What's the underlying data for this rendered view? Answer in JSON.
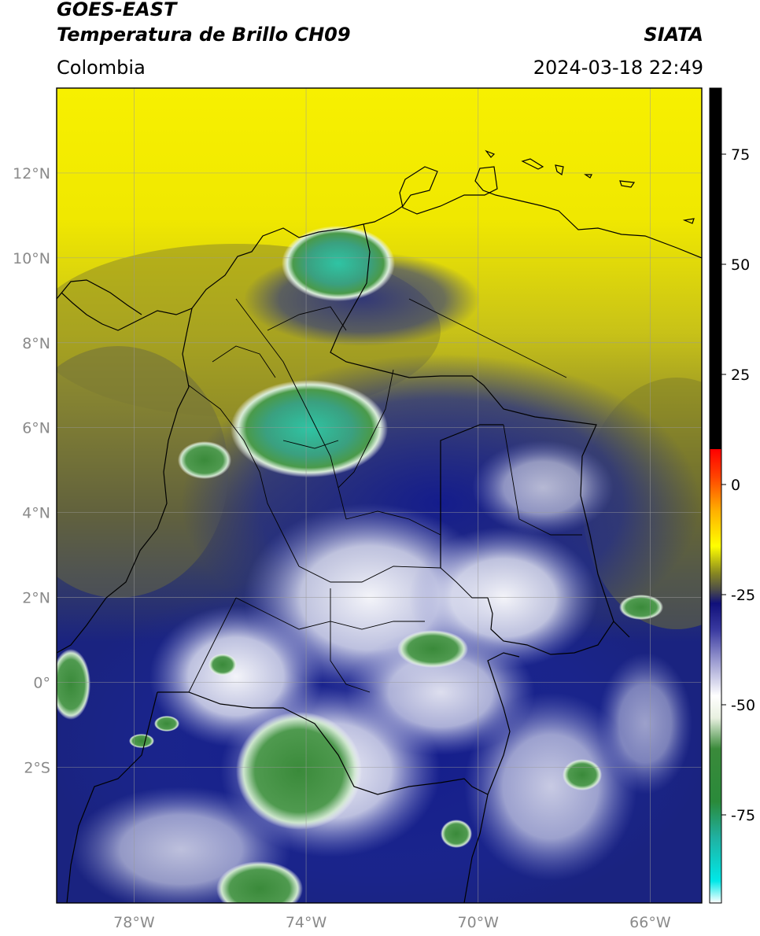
{
  "header": {
    "satellite": "GOES-EAST",
    "product": "Temperatura de Brillo CH09",
    "brand": "SIATA",
    "region": "Colombia",
    "timestamp": "2024-03-18 22:49"
  },
  "map": {
    "lon_range": [
      -79.8,
      -64.8
    ],
    "lat_range": [
      -5.2,
      14.0
    ],
    "lat_ticks": [
      {
        "value": 12,
        "label": "12°N"
      },
      {
        "value": 10,
        "label": "10°N"
      },
      {
        "value": 8,
        "label": "8°N"
      },
      {
        "value": 6,
        "label": "6°N"
      },
      {
        "value": 4,
        "label": "4°N"
      },
      {
        "value": 2,
        "label": "2°N"
      },
      {
        "value": 0,
        "label": "0°"
      },
      {
        "value": -2,
        "label": "2°S"
      }
    ],
    "lon_ticks": [
      {
        "value": -78,
        "label": "78°W"
      },
      {
        "value": -74,
        "label": "74°W"
      },
      {
        "value": -70,
        "label": "70°W"
      },
      {
        "value": -66,
        "label": "66°W"
      }
    ],
    "grid": true
  },
  "colorbar": {
    "range": [
      -95,
      90
    ],
    "ticks": [
      {
        "value": 75,
        "label": "75"
      },
      {
        "value": 50,
        "label": "50"
      },
      {
        "value": 25,
        "label": "25"
      },
      {
        "value": 0,
        "label": "0"
      },
      {
        "value": -25,
        "label": "-25"
      },
      {
        "value": -50,
        "label": "-50"
      },
      {
        "value": -75,
        "label": "-75"
      }
    ],
    "stops": [
      {
        "value": -95,
        "color": "#ffffff"
      },
      {
        "value": -90,
        "color": "#00e8e8"
      },
      {
        "value": -80,
        "color": "#20b0a0"
      },
      {
        "value": -72,
        "color": "#2a8a3a"
      },
      {
        "value": -60,
        "color": "#3a8a3a"
      },
      {
        "value": -53,
        "color": "#e8f0e0"
      },
      {
        "value": -48,
        "color": "#ffffff"
      },
      {
        "value": -40,
        "color": "#9a9ad0"
      },
      {
        "value": -33,
        "color": "#3a3aa0"
      },
      {
        "value": -27,
        "color": "#10107a"
      },
      {
        "value": -24,
        "color": "#4a4a4a"
      },
      {
        "value": -20,
        "color": "#8a8a20"
      },
      {
        "value": -14,
        "color": "#ffff00"
      },
      {
        "value": -6,
        "color": "#ffb000"
      },
      {
        "value": 2,
        "color": "#ff4000"
      },
      {
        "value": 8,
        "color": "#ff0000"
      },
      {
        "value": 8.01,
        "color": "#000000"
      },
      {
        "value": 90,
        "color": "#000000"
      }
    ]
  }
}
